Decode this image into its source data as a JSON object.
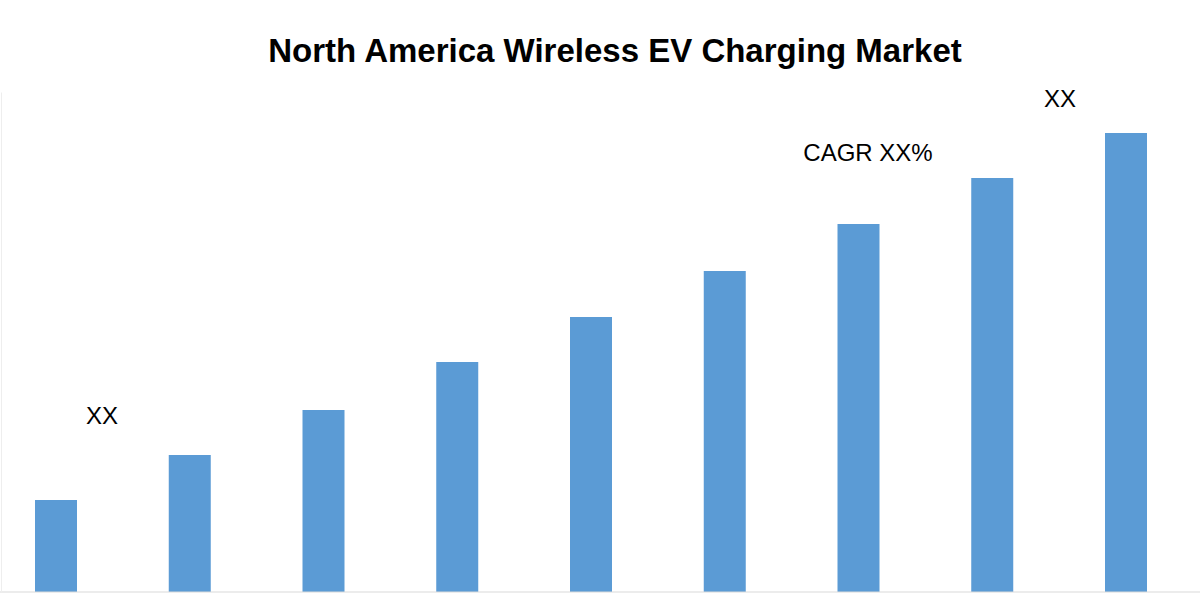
{
  "chart_data": {
    "type": "bar",
    "title": "North America Wireless EV Charging Market",
    "categories": [
      null,
      null,
      null,
      null,
      null,
      null,
      null,
      null,
      null
    ],
    "values": [
      92,
      137,
      182,
      230,
      275,
      321,
      368,
      414,
      459
    ],
    "color": "#5b9bd5",
    "ylim": [
      0,
      500
    ],
    "tick_labels": false,
    "annotations": [
      {
        "text": "XX"
      },
      {
        "text": "CAGR XX%"
      },
      {
        "text": "XX"
      }
    ]
  }
}
